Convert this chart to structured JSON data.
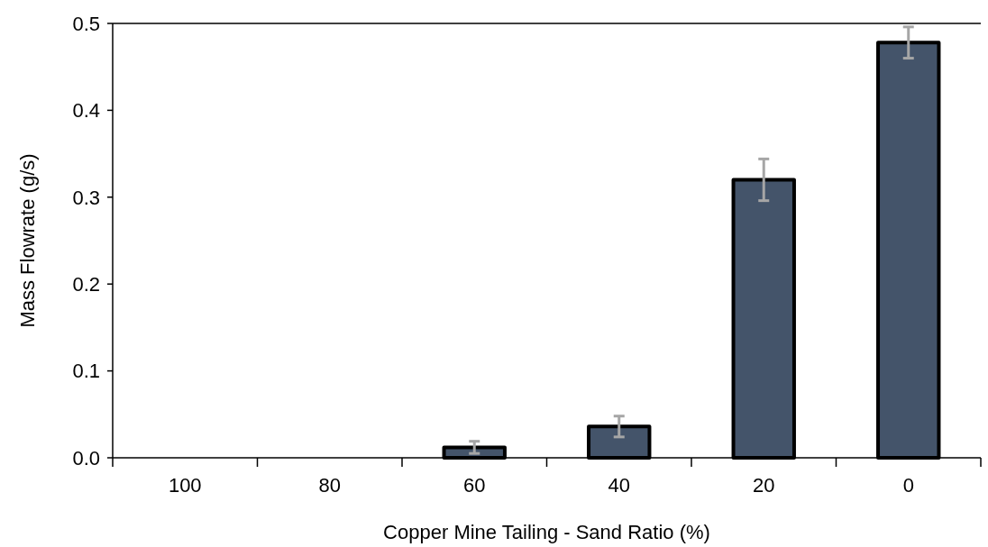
{
  "chart_data": {
    "type": "bar",
    "xlabel": "Copper Mine Tailing - Sand Ratio (%)",
    "ylabel": "Mass Flowrate (g/s)",
    "categories": [
      "100",
      "80",
      "60",
      "40",
      "20",
      "0"
    ],
    "values": [
      0,
      0,
      0.012,
      0.036,
      0.32,
      0.478
    ],
    "errors": [
      null,
      null,
      0.007,
      0.012,
      0.024,
      0.018
    ],
    "color": "#44546a",
    "ylim": [
      0,
      0.5
    ],
    "yticks": [
      {
        "value": 0,
        "label": "0.0"
      },
      {
        "value": 0.1,
        "label": "0.1"
      },
      {
        "value": 0.2,
        "label": "0.2"
      },
      {
        "value": 0.3,
        "label": "0.3"
      },
      {
        "value": 0.4,
        "label": "0.4"
      },
      {
        "value": 0.5,
        "label": "0.5"
      }
    ],
    "grid": false
  }
}
